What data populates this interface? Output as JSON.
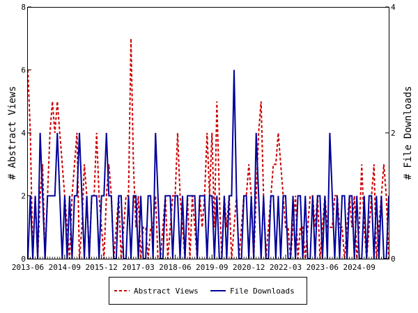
{
  "chart_data": {
    "type": "line",
    "ylabel_left": "# Abstract Views",
    "ylabel_right": "# File Downloads",
    "ylim_left": [
      0,
      8
    ],
    "ylim_right": [
      0,
      4
    ],
    "yticks_left": [
      "0",
      "2",
      "4",
      "6",
      "8"
    ],
    "yticks_right": [
      "0",
      "2",
      "4"
    ],
    "grid": false,
    "legend_position": "bottom-center",
    "x_tick_labels": [
      "2013-06",
      "2014-09",
      "2015-12",
      "2017-03",
      "2018-06",
      "2019-09",
      "2020-12",
      "2022-03",
      "2023-06",
      "2024-09"
    ],
    "months": [
      "2013-06",
      "2013-07",
      "2013-08",
      "2013-09",
      "2013-10",
      "2013-11",
      "2013-12",
      "2014-01",
      "2014-02",
      "2014-03",
      "2014-04",
      "2014-05",
      "2014-06",
      "2014-07",
      "2014-08",
      "2014-09",
      "2014-10",
      "2014-11",
      "2014-12",
      "2015-01",
      "2015-02",
      "2015-03",
      "2015-04",
      "2015-05",
      "2015-06",
      "2015-07",
      "2015-08",
      "2015-09",
      "2015-10",
      "2015-11",
      "2015-12",
      "2016-01",
      "2016-02",
      "2016-03",
      "2016-04",
      "2016-05",
      "2016-06",
      "2016-07",
      "2016-08",
      "2016-09",
      "2016-10",
      "2016-11",
      "2016-12",
      "2017-01",
      "2017-02",
      "2017-03",
      "2017-04",
      "2017-05",
      "2017-06",
      "2017-07",
      "2017-08",
      "2017-09",
      "2017-10",
      "2017-11",
      "2017-12",
      "2018-01",
      "2018-02",
      "2018-03",
      "2018-04",
      "2018-05",
      "2018-06",
      "2018-07",
      "2018-08",
      "2018-09",
      "2018-10",
      "2018-11",
      "2018-12",
      "2019-01",
      "2019-02",
      "2019-03",
      "2019-04",
      "2019-05",
      "2019-06",
      "2019-07",
      "2019-08",
      "2019-09",
      "2019-10",
      "2019-11",
      "2019-12",
      "2020-01",
      "2020-02",
      "2020-03",
      "2020-04",
      "2020-05",
      "2020-06",
      "2020-07",
      "2020-08",
      "2020-09",
      "2020-10",
      "2020-11",
      "2020-12",
      "2021-01",
      "2021-02",
      "2021-03",
      "2021-04",
      "2021-05",
      "2021-06",
      "2021-07",
      "2021-08",
      "2021-09",
      "2021-10",
      "2021-11",
      "2021-12",
      "2022-01",
      "2022-02",
      "2022-03",
      "2022-04",
      "2022-05",
      "2022-06",
      "2022-07",
      "2022-08",
      "2022-09",
      "2022-10",
      "2022-11",
      "2022-12",
      "2023-01",
      "2023-02",
      "2023-03",
      "2023-04",
      "2023-05",
      "2023-06",
      "2023-07",
      "2023-08",
      "2023-09",
      "2023-10",
      "2023-11",
      "2023-12",
      "2024-01",
      "2024-02",
      "2024-03",
      "2024-04",
      "2024-05",
      "2024-06",
      "2024-07",
      "2024-08",
      "2024-09",
      "2024-10",
      "2024-11",
      "2024-12",
      "2025-01",
      "2025-02",
      "2025-03",
      "2025-04",
      "2025-05",
      "2025-06",
      "2025-07",
      "2025-08",
      "2025-09"
    ],
    "series": [
      {
        "name": "Abstract Views",
        "axis": "left",
        "color": "#cc0000",
        "dash": "dashed",
        "values": [
          6,
          4,
          0,
          2,
          0,
          2,
          3,
          0,
          2,
          4,
          5,
          4,
          5,
          4,
          3,
          2,
          1,
          0,
          2,
          3,
          4,
          0,
          1,
          3,
          2,
          0,
          2,
          2,
          4,
          2,
          1,
          0,
          2,
          3,
          2,
          0,
          1,
          2,
          0,
          1,
          2,
          2,
          7,
          3,
          1,
          2,
          0,
          1,
          1,
          0,
          1,
          1,
          2,
          0,
          0,
          1,
          2,
          0,
          1,
          2,
          2,
          4,
          2,
          1,
          0,
          2,
          0,
          2,
          1,
          0,
          2,
          1,
          2,
          4,
          2,
          4,
          1,
          5,
          2,
          0,
          2,
          1,
          2,
          0,
          1,
          2,
          0,
          1,
          2,
          2,
          3,
          2,
          0,
          2,
          4,
          5,
          2,
          0,
          1,
          2,
          3,
          3,
          4,
          3,
          2,
          1,
          1,
          0,
          1,
          2,
          0,
          1,
          1,
          0,
          1,
          2,
          2,
          1,
          2,
          0,
          1,
          2,
          1,
          1,
          1,
          2,
          2,
          1,
          1,
          0,
          1,
          2,
          1,
          2,
          0,
          1,
          3,
          1,
          0,
          1,
          2,
          3,
          0,
          1,
          2,
          3,
          2,
          0
        ]
      },
      {
        "name": "File Downloads",
        "axis": "right",
        "color": "#000099",
        "dash": "solid",
        "values": [
          0,
          1,
          0,
          1,
          0,
          2,
          1,
          0,
          1,
          1,
          1,
          1,
          2,
          1,
          0,
          1,
          0,
          1,
          0,
          1,
          1,
          2,
          1,
          0,
          1,
          0,
          1,
          1,
          1,
          0,
          1,
          1,
          2,
          1,
          1,
          0,
          0,
          1,
          1,
          0,
          0,
          1,
          0,
          1,
          1,
          0,
          1,
          0,
          0,
          1,
          1,
          0,
          2,
          1,
          0,
          0,
          1,
          1,
          1,
          0,
          1,
          1,
          0,
          1,
          0,
          1,
          1,
          1,
          1,
          0,
          1,
          1,
          1,
          0,
          1,
          1,
          0,
          1,
          0,
          0,
          1,
          0,
          1,
          1,
          3,
          1,
          0,
          0,
          1,
          1,
          0,
          1,
          0,
          2,
          1,
          0,
          1,
          0,
          0,
          1,
          1,
          0,
          1,
          0,
          1,
          1,
          0,
          0,
          1,
          0,
          1,
          1,
          0,
          1,
          0,
          0,
          1,
          0,
          1,
          1,
          0,
          1,
          0,
          2,
          1,
          0,
          1,
          0,
          1,
          1,
          0,
          1,
          1,
          0,
          1,
          0,
          0,
          1,
          0,
          1,
          1,
          0,
          1,
          0,
          1,
          0,
          0,
          1
        ]
      }
    ]
  }
}
